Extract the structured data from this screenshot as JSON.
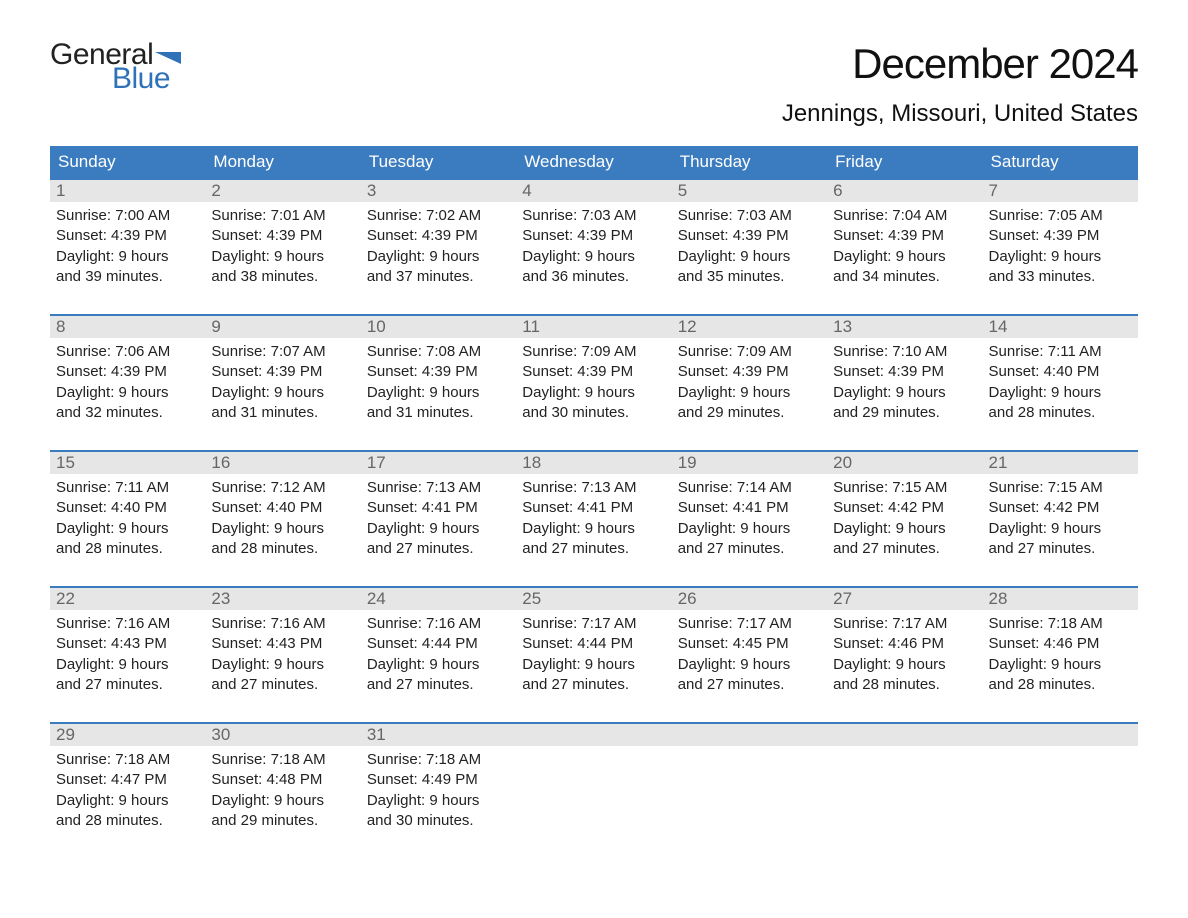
{
  "logo": {
    "word1": "General",
    "word2": "Blue",
    "flag_color": "#2f72b8"
  },
  "title": "December 2024",
  "location": "Jennings, Missouri, United States",
  "colors": {
    "header_bg": "#3b7bbf",
    "daynum_bg": "#e6e6e6",
    "week_border": "#3b7bbf",
    "text": "#222222",
    "logo_blue": "#2f72b8"
  },
  "fonts": {
    "title_size": 42,
    "location_size": 24,
    "header_size": 17,
    "body_size": 15
  },
  "day_names": [
    "Sunday",
    "Monday",
    "Tuesday",
    "Wednesday",
    "Thursday",
    "Friday",
    "Saturday"
  ],
  "weeks": [
    [
      {
        "n": "1",
        "sunrise": "7:00 AM",
        "sunset": "4:39 PM",
        "dl1": "Daylight: 9 hours",
        "dl2": "and 39 minutes."
      },
      {
        "n": "2",
        "sunrise": "7:01 AM",
        "sunset": "4:39 PM",
        "dl1": "Daylight: 9 hours",
        "dl2": "and 38 minutes."
      },
      {
        "n": "3",
        "sunrise": "7:02 AM",
        "sunset": "4:39 PM",
        "dl1": "Daylight: 9 hours",
        "dl2": "and 37 minutes."
      },
      {
        "n": "4",
        "sunrise": "7:03 AM",
        "sunset": "4:39 PM",
        "dl1": "Daylight: 9 hours",
        "dl2": "and 36 minutes."
      },
      {
        "n": "5",
        "sunrise": "7:03 AM",
        "sunset": "4:39 PM",
        "dl1": "Daylight: 9 hours",
        "dl2": "and 35 minutes."
      },
      {
        "n": "6",
        "sunrise": "7:04 AM",
        "sunset": "4:39 PM",
        "dl1": "Daylight: 9 hours",
        "dl2": "and 34 minutes."
      },
      {
        "n": "7",
        "sunrise": "7:05 AM",
        "sunset": "4:39 PM",
        "dl1": "Daylight: 9 hours",
        "dl2": "and 33 minutes."
      }
    ],
    [
      {
        "n": "8",
        "sunrise": "7:06 AM",
        "sunset": "4:39 PM",
        "dl1": "Daylight: 9 hours",
        "dl2": "and 32 minutes."
      },
      {
        "n": "9",
        "sunrise": "7:07 AM",
        "sunset": "4:39 PM",
        "dl1": "Daylight: 9 hours",
        "dl2": "and 31 minutes."
      },
      {
        "n": "10",
        "sunrise": "7:08 AM",
        "sunset": "4:39 PM",
        "dl1": "Daylight: 9 hours",
        "dl2": "and 31 minutes."
      },
      {
        "n": "11",
        "sunrise": "7:09 AM",
        "sunset": "4:39 PM",
        "dl1": "Daylight: 9 hours",
        "dl2": "and 30 minutes."
      },
      {
        "n": "12",
        "sunrise": "7:09 AM",
        "sunset": "4:39 PM",
        "dl1": "Daylight: 9 hours",
        "dl2": "and 29 minutes."
      },
      {
        "n": "13",
        "sunrise": "7:10 AM",
        "sunset": "4:39 PM",
        "dl1": "Daylight: 9 hours",
        "dl2": "and 29 minutes."
      },
      {
        "n": "14",
        "sunrise": "7:11 AM",
        "sunset": "4:40 PM",
        "dl1": "Daylight: 9 hours",
        "dl2": "and 28 minutes."
      }
    ],
    [
      {
        "n": "15",
        "sunrise": "7:11 AM",
        "sunset": "4:40 PM",
        "dl1": "Daylight: 9 hours",
        "dl2": "and 28 minutes."
      },
      {
        "n": "16",
        "sunrise": "7:12 AM",
        "sunset": "4:40 PM",
        "dl1": "Daylight: 9 hours",
        "dl2": "and 28 minutes."
      },
      {
        "n": "17",
        "sunrise": "7:13 AM",
        "sunset": "4:41 PM",
        "dl1": "Daylight: 9 hours",
        "dl2": "and 27 minutes."
      },
      {
        "n": "18",
        "sunrise": "7:13 AM",
        "sunset": "4:41 PM",
        "dl1": "Daylight: 9 hours",
        "dl2": "and 27 minutes."
      },
      {
        "n": "19",
        "sunrise": "7:14 AM",
        "sunset": "4:41 PM",
        "dl1": "Daylight: 9 hours",
        "dl2": "and 27 minutes."
      },
      {
        "n": "20",
        "sunrise": "7:15 AM",
        "sunset": "4:42 PM",
        "dl1": "Daylight: 9 hours",
        "dl2": "and 27 minutes."
      },
      {
        "n": "21",
        "sunrise": "7:15 AM",
        "sunset": "4:42 PM",
        "dl1": "Daylight: 9 hours",
        "dl2": "and 27 minutes."
      }
    ],
    [
      {
        "n": "22",
        "sunrise": "7:16 AM",
        "sunset": "4:43 PM",
        "dl1": "Daylight: 9 hours",
        "dl2": "and 27 minutes."
      },
      {
        "n": "23",
        "sunrise": "7:16 AM",
        "sunset": "4:43 PM",
        "dl1": "Daylight: 9 hours",
        "dl2": "and 27 minutes."
      },
      {
        "n": "24",
        "sunrise": "7:16 AM",
        "sunset": "4:44 PM",
        "dl1": "Daylight: 9 hours",
        "dl2": "and 27 minutes."
      },
      {
        "n": "25",
        "sunrise": "7:17 AM",
        "sunset": "4:44 PM",
        "dl1": "Daylight: 9 hours",
        "dl2": "and 27 minutes."
      },
      {
        "n": "26",
        "sunrise": "7:17 AM",
        "sunset": "4:45 PM",
        "dl1": "Daylight: 9 hours",
        "dl2": "and 27 minutes."
      },
      {
        "n": "27",
        "sunrise": "7:17 AM",
        "sunset": "4:46 PM",
        "dl1": "Daylight: 9 hours",
        "dl2": "and 28 minutes."
      },
      {
        "n": "28",
        "sunrise": "7:18 AM",
        "sunset": "4:46 PM",
        "dl1": "Daylight: 9 hours",
        "dl2": "and 28 minutes."
      }
    ],
    [
      {
        "n": "29",
        "sunrise": "7:18 AM",
        "sunset": "4:47 PM",
        "dl1": "Daylight: 9 hours",
        "dl2": "and 28 minutes."
      },
      {
        "n": "30",
        "sunrise": "7:18 AM",
        "sunset": "4:48 PM",
        "dl1": "Daylight: 9 hours",
        "dl2": "and 29 minutes."
      },
      {
        "n": "31",
        "sunrise": "7:18 AM",
        "sunset": "4:49 PM",
        "dl1": "Daylight: 9 hours",
        "dl2": "and 30 minutes."
      },
      null,
      null,
      null,
      null
    ]
  ]
}
